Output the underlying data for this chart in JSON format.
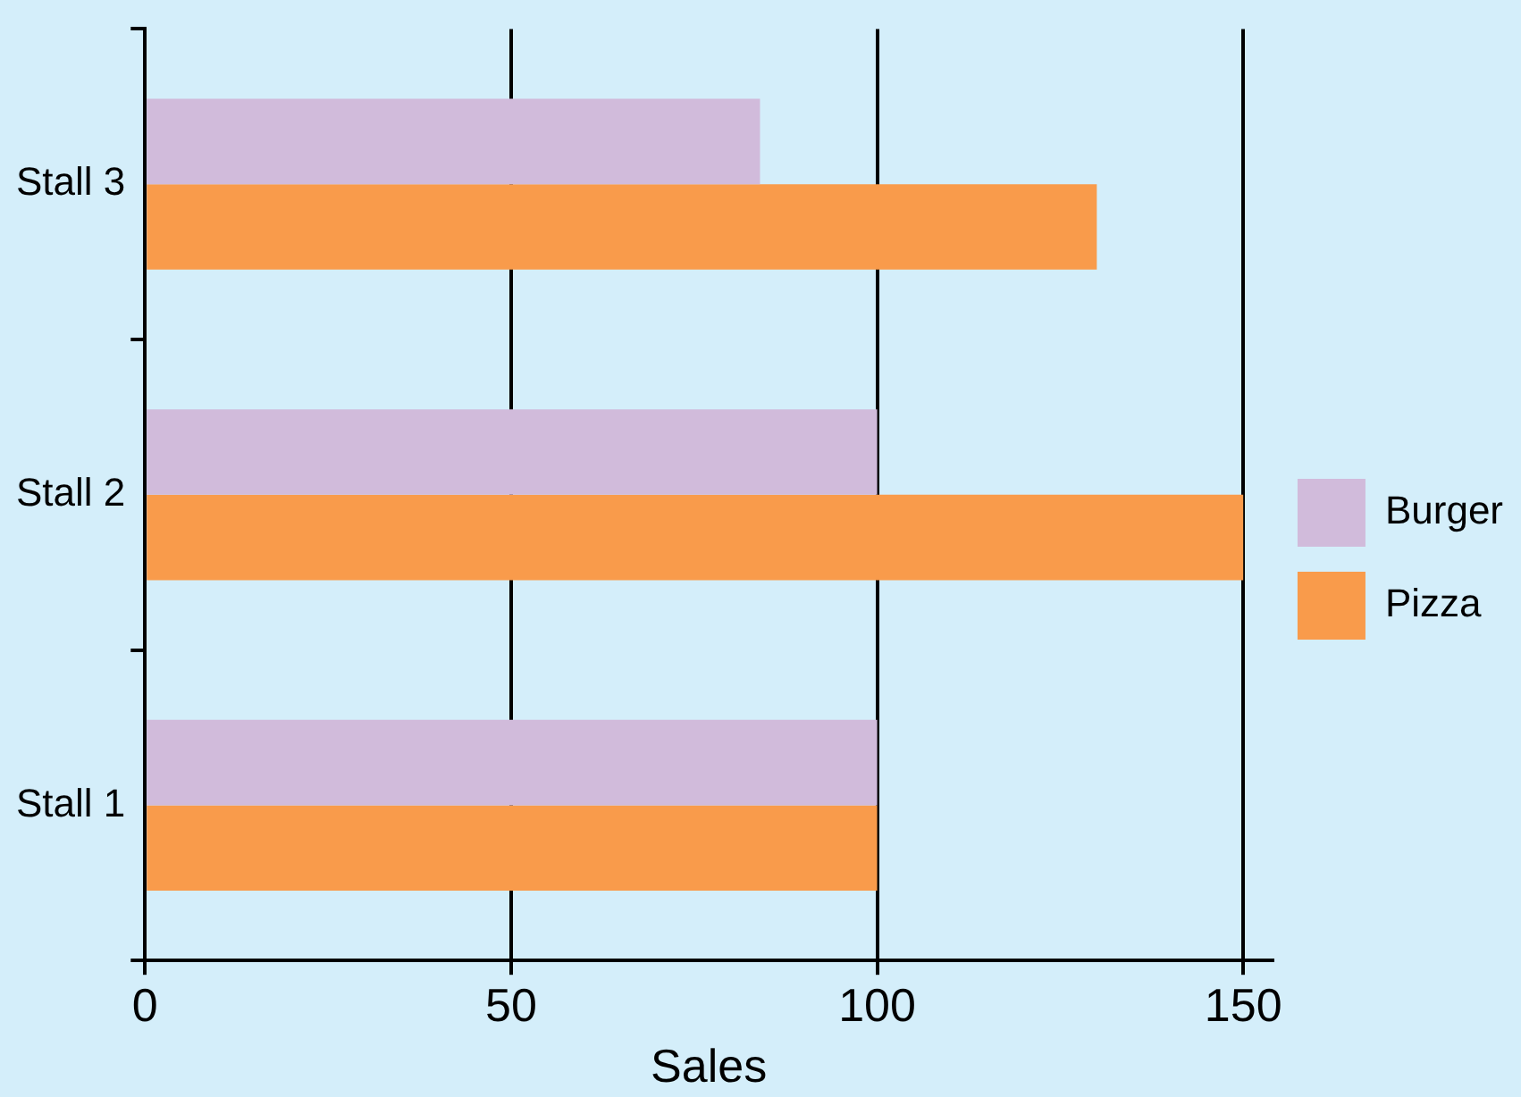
{
  "chart_data": {
    "type": "bar",
    "orientation": "horizontal",
    "xlabel": "Sales",
    "categories": [
      "Stall 3",
      "Stall 2",
      "Stall 1"
    ],
    "series": [
      {
        "name": "Burger",
        "color": "#d1bbdb",
        "values": [
          84,
          100,
          100
        ]
      },
      {
        "name": "Pizza",
        "color": "#f99b4b",
        "values": [
          130,
          150,
          100
        ]
      }
    ],
    "xlim": [
      0,
      154
    ],
    "xticks": [
      0,
      50,
      100,
      150
    ],
    "grid": "x",
    "legend": "right"
  }
}
